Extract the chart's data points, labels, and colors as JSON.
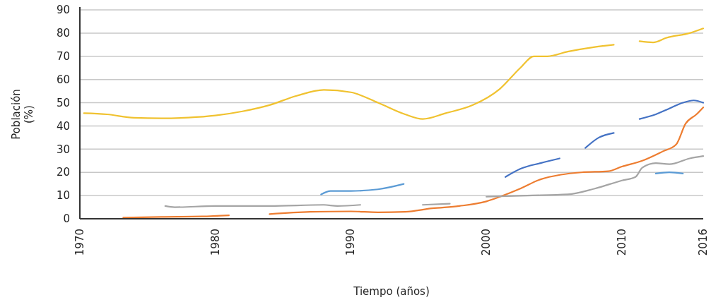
{
  "chart_data": {
    "type": "line",
    "xlabel": "Tiempo (años)",
    "ylabel": "Población (%)",
    "xlim": [
      1970,
      2016
    ],
    "xticks": [
      1970,
      1980,
      1990,
      2000,
      2010,
      2016
    ],
    "ylim": [
      0,
      90
    ],
    "yticks": [
      0,
      10,
      20,
      30,
      40,
      50,
      60,
      70,
      80,
      90
    ],
    "grid": "y",
    "line_style": "solid",
    "series": [
      {
        "color": "#f0c230",
        "x": [
          1970.3,
          1972,
          1974,
          1976,
          1978,
          1980,
          1982,
          1984,
          1986,
          1988,
          1990,
          1992,
          1994,
          1995.3,
          1997,
          1999,
          2001,
          2002.5,
          2003.5,
          2004.5,
          2006,
          2008,
          2009.4,
          2010.3,
          2011.3,
          2012.3,
          2013.3,
          2015,
          2016
        ],
        "values": [
          45.5,
          45,
          43.5,
          43.3,
          43.6,
          44.5,
          46.3,
          49,
          53,
          55.5,
          54.5,
          50,
          45,
          43,
          45.5,
          49,
          56,
          65,
          70,
          70,
          72,
          74,
          75,
          null,
          76.5,
          76,
          78,
          80,
          82
        ]
      },
      {
        "color": "#ed7d31",
        "x": [
          1973.2,
          1976,
          1979,
          1981,
          1982.5,
          1984,
          1987,
          1990,
          1992,
          1994,
          1996,
          1998,
          2000,
          2001,
          2002.5,
          2004,
          2005.5,
          2007,
          2009,
          2010,
          2011.5,
          2013,
          2014,
          2014.7,
          2015.5,
          2016
        ],
        "values": [
          0.5,
          0.8,
          1,
          1.5,
          null,
          2,
          3,
          3.2,
          2.8,
          3,
          4.5,
          5.5,
          7.5,
          9.5,
          13,
          17,
          19,
          20,
          20.5,
          22.5,
          25,
          29,
          32,
          41,
          45,
          48
        ]
      },
      {
        "color": "#a5a5a5",
        "x": [
          1976.3,
          1977,
          1980,
          1984,
          1988,
          1989,
          1990.7,
          1993,
          1995.3,
          1997.3,
          1998.5,
          2000,
          2003,
          2006,
          2008,
          2010,
          2011,
          2011.5,
          2012.5,
          2013.5,
          2015,
          2016
        ],
        "values": [
          5.5,
          5,
          5.5,
          5.5,
          6,
          5.5,
          6,
          null,
          6,
          6.5,
          null,
          9.5,
          10,
          10.5,
          13,
          16.5,
          18,
          22,
          24,
          23.5,
          26,
          27
        ]
      },
      {
        "color": "#5b9bd5",
        "x": [
          1987.8,
          1988.5,
          1990,
          1992,
          1993.9,
          2003,
          2012.5,
          2013.5,
          2014.5
        ],
        "values": [
          10.5,
          12,
          12,
          12.7,
          15,
          null,
          19.5,
          20,
          19.5
        ]
      },
      {
        "color": "#4472c4",
        "x": [
          2001.4,
          2002.5,
          2004,
          2005.4,
          2006.3,
          2007.3,
          2008.3,
          2009.4,
          2010.3,
          2011.3,
          2012.5,
          2013.5,
          2014.5,
          2015.3,
          2016
        ],
        "values": [
          18,
          21.5,
          24,
          26,
          null,
          30.5,
          35,
          37,
          null,
          43,
          45,
          47.5,
          50,
          51,
          50
        ]
      }
    ]
  }
}
